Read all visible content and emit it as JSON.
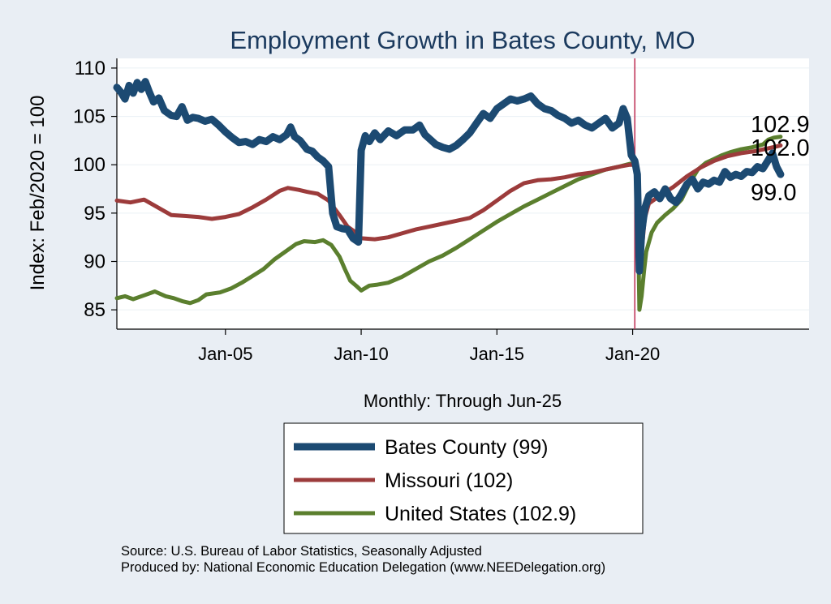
{
  "chart_data": {
    "type": "line",
    "title": "Employment Growth in Bates  County, MO",
    "ylabel": "Index: Feb/2020 = 100",
    "xlabel": "Monthly: Through Jun-25",
    "ylim": [
      83,
      111
    ],
    "xlim": [
      2001.0,
      2026.5
    ],
    "yticks": [
      85,
      90,
      95,
      100,
      105,
      110
    ],
    "xticks": [
      {
        "x": 2005.0,
        "label": "Jan-05"
      },
      {
        "x": 2010.0,
        "label": "Jan-10"
      },
      {
        "x": 2015.0,
        "label": "Jan-15"
      },
      {
        "x": 2020.0,
        "label": "Jan-20"
      }
    ],
    "reference_line_x": 2020.08,
    "reference_line_color": "#c0395b",
    "series": [
      {
        "name": "United States",
        "legend_label": "United States (102.9)",
        "color": "#5b7f2e",
        "end_label": "102.9",
        "points": [
          [
            2001.0,
            86.2
          ],
          [
            2001.3,
            86.4
          ],
          [
            2001.6,
            86.1
          ],
          [
            2002.0,
            86.5
          ],
          [
            2002.4,
            86.9
          ],
          [
            2002.8,
            86.4
          ],
          [
            2003.1,
            86.2
          ],
          [
            2003.4,
            85.9
          ],
          [
            2003.7,
            85.7
          ],
          [
            2004.0,
            86.0
          ],
          [
            2004.3,
            86.6
          ],
          [
            2004.8,
            86.8
          ],
          [
            2005.2,
            87.2
          ],
          [
            2005.6,
            87.8
          ],
          [
            2006.0,
            88.5
          ],
          [
            2006.4,
            89.2
          ],
          [
            2006.8,
            90.2
          ],
          [
            2007.2,
            91.0
          ],
          [
            2007.6,
            91.8
          ],
          [
            2007.9,
            92.1
          ],
          [
            2008.3,
            92.0
          ],
          [
            2008.6,
            92.2
          ],
          [
            2008.9,
            91.7
          ],
          [
            2009.2,
            90.5
          ],
          [
            2009.4,
            89.2
          ],
          [
            2009.6,
            88.0
          ],
          [
            2009.85,
            87.4
          ],
          [
            2010.0,
            87.0
          ],
          [
            2010.3,
            87.5
          ],
          [
            2010.6,
            87.6
          ],
          [
            2011.0,
            87.8
          ],
          [
            2011.5,
            88.4
          ],
          [
            2012.0,
            89.2
          ],
          [
            2012.5,
            90.0
          ],
          [
            2013.0,
            90.6
          ],
          [
            2013.5,
            91.4
          ],
          [
            2014.0,
            92.3
          ],
          [
            2014.5,
            93.2
          ],
          [
            2015.0,
            94.1
          ],
          [
            2015.5,
            94.9
          ],
          [
            2016.0,
            95.7
          ],
          [
            2016.5,
            96.4
          ],
          [
            2017.0,
            97.1
          ],
          [
            2017.5,
            97.8
          ],
          [
            2018.0,
            98.5
          ],
          [
            2018.5,
            99.0
          ],
          [
            2019.0,
            99.5
          ],
          [
            2019.5,
            99.8
          ],
          [
            2019.9,
            100.1
          ],
          [
            2020.08,
            100.0
          ],
          [
            2020.17,
            99.0
          ],
          [
            2020.25,
            85.0
          ],
          [
            2020.33,
            86.4
          ],
          [
            2020.42,
            89.0
          ],
          [
            2020.5,
            91.0
          ],
          [
            2020.7,
            93.0
          ],
          [
            2020.9,
            94.0
          ],
          [
            2021.2,
            94.8
          ],
          [
            2021.5,
            95.5
          ],
          [
            2021.8,
            96.4
          ],
          [
            2022.1,
            98.1
          ],
          [
            2022.4,
            99.5
          ],
          [
            2022.7,
            100.2
          ],
          [
            2023.0,
            100.6
          ],
          [
            2023.3,
            101.0
          ],
          [
            2023.6,
            101.3
          ],
          [
            2024.0,
            101.6
          ],
          [
            2024.4,
            101.8
          ],
          [
            2024.8,
            102.1
          ],
          [
            2025.0,
            102.6
          ],
          [
            2025.2,
            102.8
          ],
          [
            2025.45,
            102.9
          ]
        ]
      },
      {
        "name": "Missouri",
        "legend_label": "Missouri (102)",
        "color": "#9c3b3b",
        "end_label": "102.0",
        "points": [
          [
            2001.0,
            96.3
          ],
          [
            2001.5,
            96.1
          ],
          [
            2002.0,
            96.4
          ],
          [
            2002.5,
            95.6
          ],
          [
            2003.0,
            94.8
          ],
          [
            2003.5,
            94.7
          ],
          [
            2004.0,
            94.6
          ],
          [
            2004.5,
            94.4
          ],
          [
            2005.0,
            94.6
          ],
          [
            2005.5,
            94.9
          ],
          [
            2006.0,
            95.6
          ],
          [
            2006.5,
            96.4
          ],
          [
            2007.0,
            97.3
          ],
          [
            2007.3,
            97.6
          ],
          [
            2007.7,
            97.4
          ],
          [
            2008.0,
            97.2
          ],
          [
            2008.4,
            97.0
          ],
          [
            2008.8,
            96.3
          ],
          [
            2009.2,
            94.8
          ],
          [
            2009.5,
            93.6
          ],
          [
            2009.8,
            93.0
          ],
          [
            2010.0,
            92.4
          ],
          [
            2010.5,
            92.3
          ],
          [
            2011.0,
            92.5
          ],
          [
            2011.5,
            92.9
          ],
          [
            2012.0,
            93.3
          ],
          [
            2012.5,
            93.6
          ],
          [
            2013.0,
            93.9
          ],
          [
            2013.5,
            94.2
          ],
          [
            2014.0,
            94.5
          ],
          [
            2014.5,
            95.3
          ],
          [
            2015.0,
            96.3
          ],
          [
            2015.5,
            97.3
          ],
          [
            2016.0,
            98.1
          ],
          [
            2016.5,
            98.4
          ],
          [
            2017.0,
            98.5
          ],
          [
            2017.5,
            98.7
          ],
          [
            2018.0,
            99.0
          ],
          [
            2018.5,
            99.2
          ],
          [
            2019.0,
            99.5
          ],
          [
            2019.5,
            99.8
          ],
          [
            2019.9,
            100.0
          ],
          [
            2020.08,
            100.0
          ],
          [
            2020.17,
            99.2
          ],
          [
            2020.25,
            89.0
          ],
          [
            2020.33,
            91.0
          ],
          [
            2020.45,
            94.5
          ],
          [
            2020.6,
            96.0
          ],
          [
            2021.0,
            96.8
          ],
          [
            2021.5,
            97.7
          ],
          [
            2022.0,
            98.8
          ],
          [
            2022.5,
            99.7
          ],
          [
            2023.0,
            100.4
          ],
          [
            2023.5,
            100.9
          ],
          [
            2024.0,
            101.2
          ],
          [
            2024.5,
            101.4
          ],
          [
            2025.0,
            101.7
          ],
          [
            2025.45,
            102.0
          ]
        ]
      },
      {
        "name": "Bates  County",
        "legend_label": "Bates  County (99)",
        "color": "#1c4a72",
        "end_label": "99.0",
        "points": [
          [
            2001.0,
            108.0
          ],
          [
            2001.15,
            107.5
          ],
          [
            2001.3,
            106.8
          ],
          [
            2001.45,
            108.2
          ],
          [
            2001.6,
            107.4
          ],
          [
            2001.75,
            108.5
          ],
          [
            2001.9,
            107.8
          ],
          [
            2002.05,
            108.6
          ],
          [
            2002.2,
            107.5
          ],
          [
            2002.35,
            106.5
          ],
          [
            2002.55,
            106.9
          ],
          [
            2002.75,
            105.6
          ],
          [
            2003.0,
            105.1
          ],
          [
            2003.2,
            105.0
          ],
          [
            2003.4,
            106.0
          ],
          [
            2003.6,
            104.6
          ],
          [
            2003.8,
            104.9
          ],
          [
            2004.0,
            104.8
          ],
          [
            2004.25,
            104.5
          ],
          [
            2004.5,
            104.7
          ],
          [
            2004.75,
            104.1
          ],
          [
            2005.0,
            103.4
          ],
          [
            2005.25,
            102.8
          ],
          [
            2005.5,
            102.3
          ],
          [
            2005.75,
            102.4
          ],
          [
            2006.0,
            102.1
          ],
          [
            2006.25,
            102.6
          ],
          [
            2006.5,
            102.4
          ],
          [
            2006.75,
            102.9
          ],
          [
            2007.0,
            102.6
          ],
          [
            2007.25,
            103.1
          ],
          [
            2007.4,
            103.9
          ],
          [
            2007.55,
            102.9
          ],
          [
            2007.75,
            102.5
          ],
          [
            2008.0,
            101.6
          ],
          [
            2008.2,
            101.4
          ],
          [
            2008.4,
            100.8
          ],
          [
            2008.6,
            100.4
          ],
          [
            2008.8,
            99.8
          ],
          [
            2008.95,
            95.0
          ],
          [
            2009.1,
            93.6
          ],
          [
            2009.3,
            93.4
          ],
          [
            2009.5,
            93.3
          ],
          [
            2009.7,
            92.4
          ],
          [
            2009.9,
            92.0
          ],
          [
            2010.0,
            101.5
          ],
          [
            2010.15,
            103.0
          ],
          [
            2010.3,
            102.4
          ],
          [
            2010.5,
            103.3
          ],
          [
            2010.7,
            102.6
          ],
          [
            2011.0,
            103.5
          ],
          [
            2011.3,
            103.0
          ],
          [
            2011.6,
            103.6
          ],
          [
            2011.9,
            103.6
          ],
          [
            2012.15,
            104.1
          ],
          [
            2012.35,
            103.1
          ],
          [
            2012.55,
            102.6
          ],
          [
            2012.75,
            102.1
          ],
          [
            2013.0,
            101.8
          ],
          [
            2013.25,
            101.6
          ],
          [
            2013.5,
            102.0
          ],
          [
            2013.75,
            102.6
          ],
          [
            2014.0,
            103.3
          ],
          [
            2014.25,
            104.3
          ],
          [
            2014.5,
            105.3
          ],
          [
            2014.75,
            104.8
          ],
          [
            2015.0,
            105.8
          ],
          [
            2015.25,
            106.3
          ],
          [
            2015.5,
            106.8
          ],
          [
            2015.75,
            106.6
          ],
          [
            2016.0,
            106.8
          ],
          [
            2016.25,
            107.1
          ],
          [
            2016.5,
            106.3
          ],
          [
            2016.75,
            105.8
          ],
          [
            2017.0,
            105.6
          ],
          [
            2017.25,
            105.1
          ],
          [
            2017.5,
            104.8
          ],
          [
            2017.75,
            104.3
          ],
          [
            2018.0,
            104.6
          ],
          [
            2018.25,
            104.1
          ],
          [
            2018.5,
            103.8
          ],
          [
            2018.75,
            104.3
          ],
          [
            2019.0,
            104.8
          ],
          [
            2019.25,
            103.8
          ],
          [
            2019.5,
            104.3
          ],
          [
            2019.65,
            105.8
          ],
          [
            2019.8,
            104.8
          ],
          [
            2019.95,
            101.0
          ],
          [
            2020.08,
            100.4
          ],
          [
            2020.17,
            99.0
          ],
          [
            2020.25,
            89.0
          ],
          [
            2020.33,
            93.0
          ],
          [
            2020.45,
            95.5
          ],
          [
            2020.6,
            96.8
          ],
          [
            2020.8,
            97.2
          ],
          [
            2021.0,
            96.5
          ],
          [
            2021.2,
            97.5
          ],
          [
            2021.4,
            96.5
          ],
          [
            2021.6,
            96.1
          ],
          [
            2021.8,
            97.0
          ],
          [
            2022.0,
            98.0
          ],
          [
            2022.2,
            98.5
          ],
          [
            2022.4,
            97.5
          ],
          [
            2022.6,
            98.2
          ],
          [
            2022.8,
            98.0
          ],
          [
            2023.0,
            98.4
          ],
          [
            2023.2,
            98.2
          ],
          [
            2023.4,
            99.3
          ],
          [
            2023.6,
            98.7
          ],
          [
            2023.8,
            99.0
          ],
          [
            2024.0,
            98.8
          ],
          [
            2024.2,
            99.3
          ],
          [
            2024.4,
            99.2
          ],
          [
            2024.6,
            99.8
          ],
          [
            2024.8,
            99.6
          ],
          [
            2025.0,
            100.5
          ],
          [
            2025.15,
            101.2
          ],
          [
            2025.3,
            99.8
          ],
          [
            2025.45,
            99.0
          ]
        ]
      }
    ]
  },
  "legend": {
    "items": [
      {
        "label": "Bates  County (99)",
        "color": "#1c4a72",
        "stroke": 9
      },
      {
        "label": "Missouri (102)",
        "color": "#9c3b3b",
        "stroke": 5
      },
      {
        "label": "United States (102.9)",
        "color": "#5b7f2e",
        "stroke": 5
      }
    ]
  },
  "footer": {
    "source": "Source: U.S. Bureau of Labor Statistics, Seasonally Adjusted",
    "produced": "Produced by: National Economic Education Delegation (www.NEEDelegation.org)"
  }
}
